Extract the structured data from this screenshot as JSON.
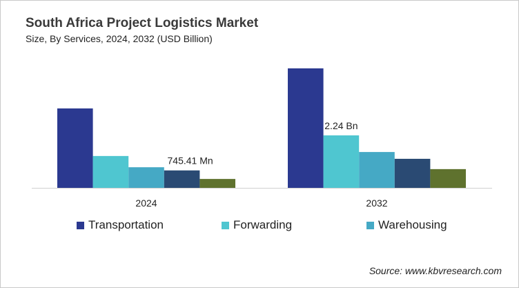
{
  "chart_data": {
    "type": "bar",
    "title": "South Africa Project Logistics Market",
    "subtitle": "Size, By Services, 2024, 2032 (USD Billion)",
    "categories": [
      "2024",
      "2032"
    ],
    "ylim": [
      0,
      5.2
    ],
    "grid": false,
    "legend_position": "bottom",
    "series": [
      {
        "name": "Transportation",
        "color": "#2b3990",
        "values": [
          3.39,
          5.1
        ]
      },
      {
        "name": "Forwarding",
        "color": "#4fc6d0",
        "values": [
          1.36,
          2.24
        ]
      },
      {
        "name": "Warehousing",
        "color": "#45a9c5",
        "values": [
          0.88,
          1.53
        ]
      },
      {
        "color": "#2a4a73",
        "values": [
          0.745,
          1.24
        ]
      },
      {
        "color": "#5f722e",
        "values": [
          0.38,
          0.8
        ]
      }
    ],
    "annotations": [
      {
        "text": "745.41 Mn",
        "series": 3,
        "category": 0
      },
      {
        "text": "2.24 Bn",
        "series": 1,
        "category": 1
      }
    ]
  },
  "source": "Source: www.kbvresearch.com"
}
